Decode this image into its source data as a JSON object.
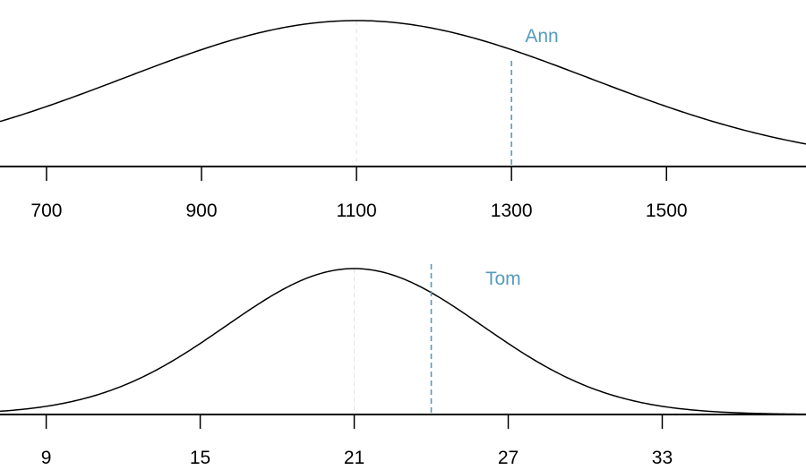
{
  "chart_data": [
    {
      "type": "line",
      "distribution": "normal",
      "mean": 1100,
      "sd": 300,
      "xlim": [
        640,
        1680
      ],
      "ticks": [
        700,
        900,
        1100,
        1300,
        1500
      ],
      "tick_labels": [
        "700",
        "900",
        "1100",
        "1300",
        "1500"
      ],
      "mean_line": {
        "x": 1100,
        "style": "dashed",
        "color": "#e5e5e5"
      },
      "marker": {
        "label": "Ann",
        "x": 1300,
        "style": "dashed",
        "color": "#569bbd"
      },
      "curve_color": "#000000",
      "title": "",
      "xlabel": "",
      "ylabel": ""
    },
    {
      "type": "line",
      "distribution": "normal",
      "mean": 21,
      "sd": 5,
      "xlim": [
        7.2,
        38.6
      ],
      "ticks": [
        9,
        15,
        21,
        27,
        33
      ],
      "tick_labels": [
        "9",
        "15",
        "21",
        "27",
        "33"
      ],
      "mean_line": {
        "x": 21,
        "style": "dashed",
        "color": "#e5e5e5"
      },
      "marker": {
        "label": "Tom",
        "x": 24,
        "style": "dashed",
        "color": "#569bbd"
      },
      "curve_color": "#000000",
      "title": "",
      "xlabel": "",
      "ylabel": ""
    }
  ]
}
